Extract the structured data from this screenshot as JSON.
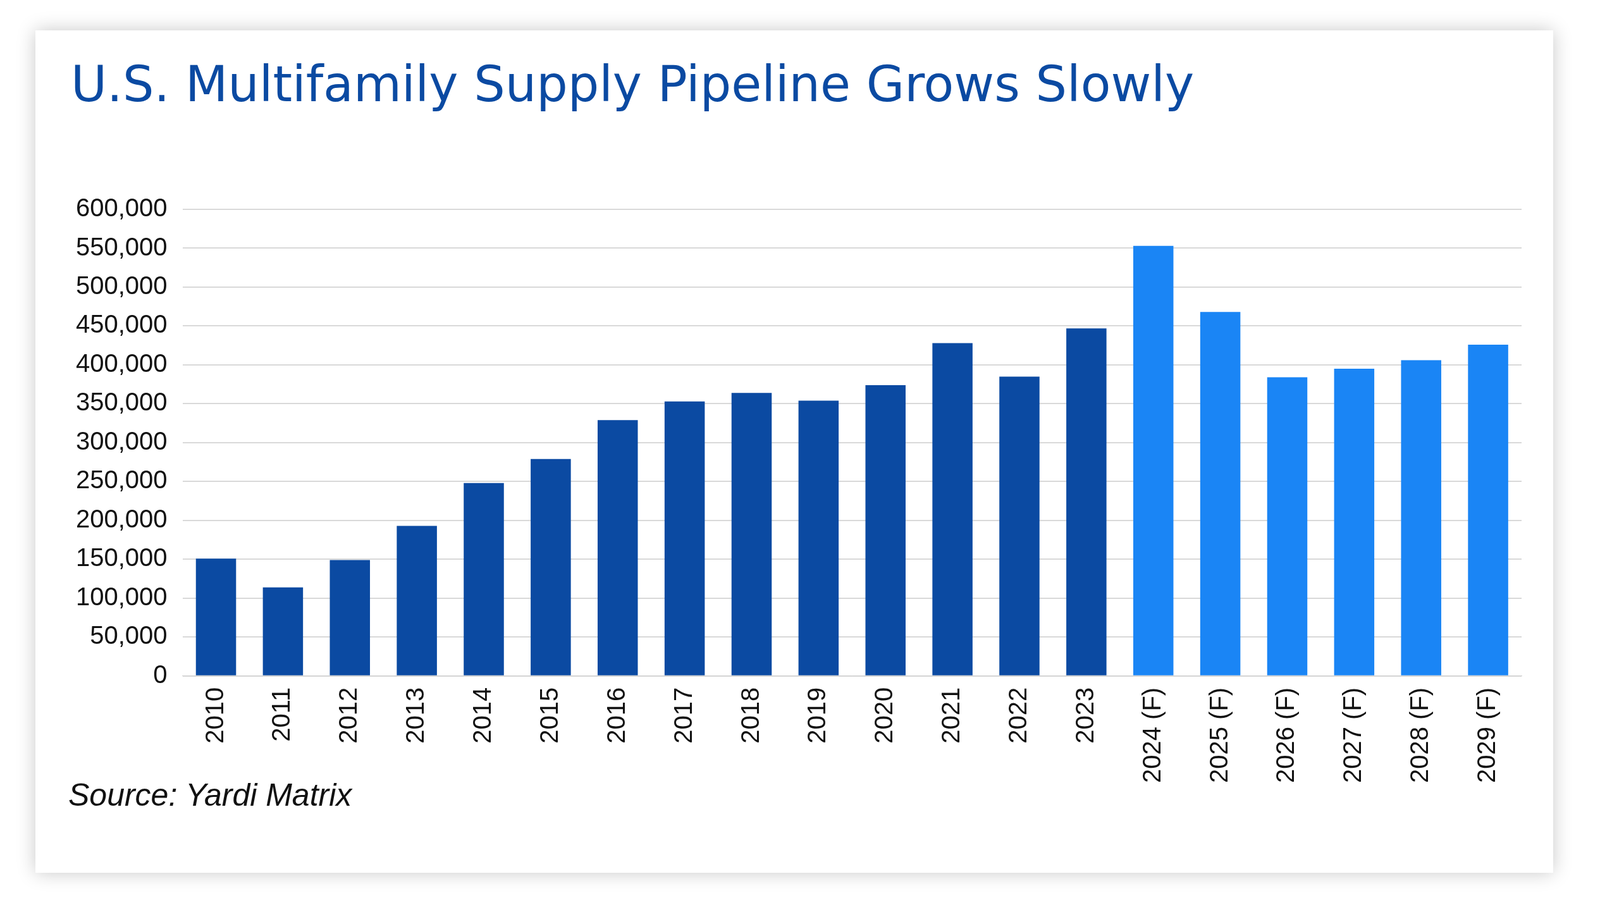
{
  "chart_data": {
    "type": "bar",
    "title": "U.S. Multifamily Supply Pipeline Grows Slowly",
    "source": "Source: Yardi Matrix",
    "categories": [
      "2010",
      "2011",
      "2012",
      "2013",
      "2014",
      "2015",
      "2016",
      "2017",
      "2018",
      "2019",
      "2020",
      "2021",
      "2022",
      "2023",
      "2024 (F)",
      "2025 (F)",
      "2026 (F)",
      "2027 (F)",
      "2028 (F)",
      "2029 (F)"
    ],
    "values": [
      151000,
      114000,
      149000,
      193000,
      248000,
      279000,
      329000,
      353000,
      364000,
      354000,
      374000,
      428000,
      385000,
      447000,
      553000,
      468000,
      384000,
      395000,
      406000,
      426000
    ],
    "colors": [
      "#0b4aa2",
      "#0b4aa2",
      "#0b4aa2",
      "#0b4aa2",
      "#0b4aa2",
      "#0b4aa2",
      "#0b4aa2",
      "#0b4aa2",
      "#0b4aa2",
      "#0b4aa2",
      "#0b4aa2",
      "#0b4aa2",
      "#0b4aa2",
      "#0b4aa2",
      "#1a85f5",
      "#1a85f5",
      "#1a85f5",
      "#1a85f5",
      "#1a85f5",
      "#1a85f5"
    ],
    "ylim": [
      0,
      600000
    ],
    "yticks": [
      0,
      {
        "value": 50000,
        "label": "50,000"
      },
      {
        "value": 100000,
        "label": "100,000"
      },
      {
        "value": 150000,
        "label": "150,000"
      },
      {
        "value": 200000,
        "label": "200,000"
      },
      {
        "value": 250000,
        "label": "250,000"
      },
      {
        "value": 300000,
        "label": "300,000"
      },
      {
        "value": 350000,
        "label": "350,000"
      },
      {
        "value": 400000,
        "label": "400,000"
      },
      {
        "value": 450000,
        "label": "450,000"
      },
      {
        "value": 500000,
        "label": "500,000"
      },
      {
        "value": 550000,
        "label": "550,000"
      },
      {
        "value": 600000,
        "label": "600,000"
      }
    ],
    "grid": true
  }
}
